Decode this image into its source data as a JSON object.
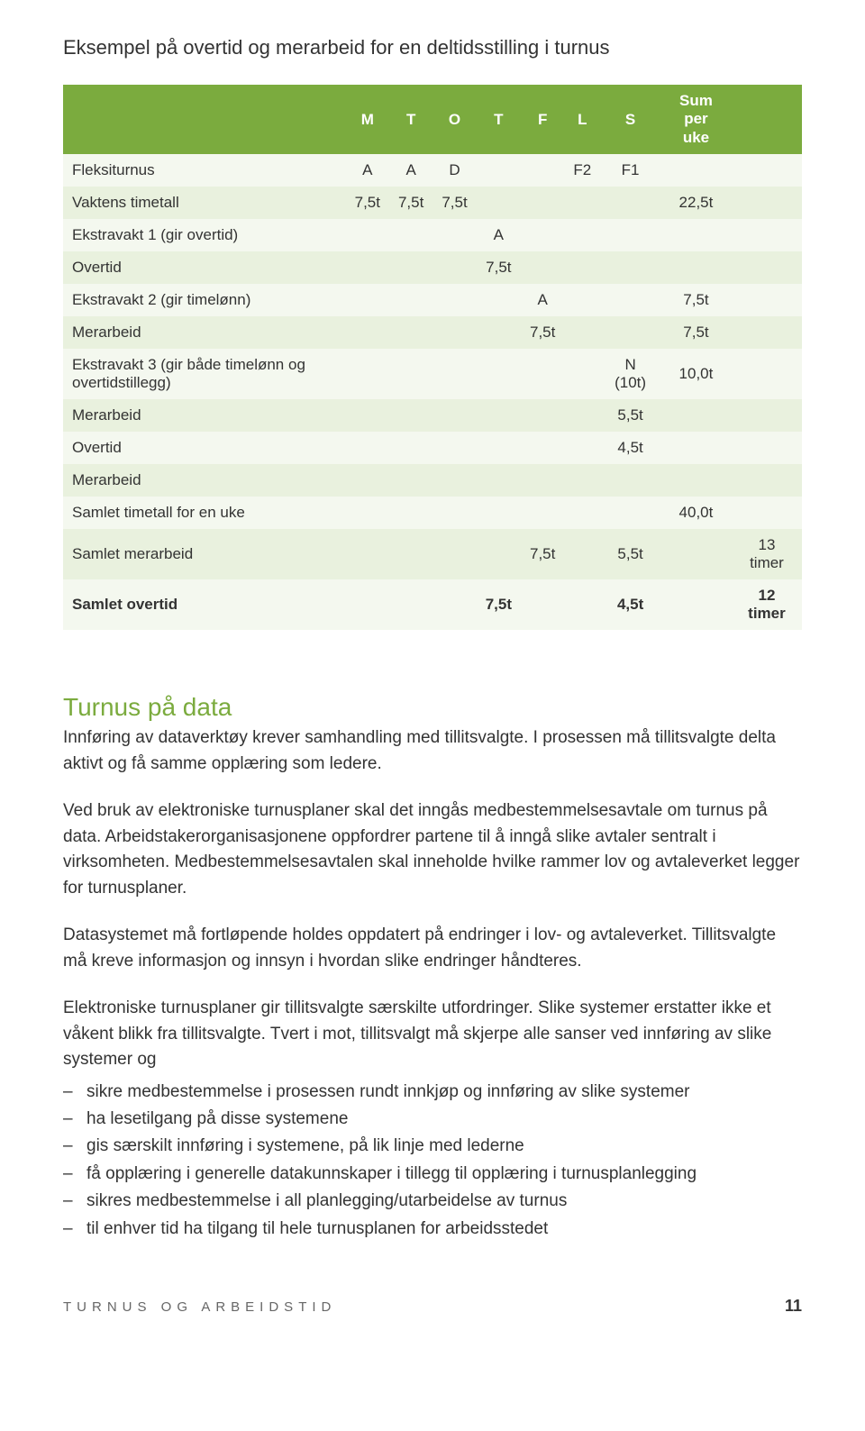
{
  "title": "Eksempel på overtid og merarbeid for en deltidsstilling i turnus",
  "table": {
    "header_bg": "#7bab3e",
    "header_fg": "#ffffff",
    "row_odd_bg": "#f4f8ef",
    "row_even_bg": "#e9f1de",
    "columns": [
      "",
      "M",
      "T",
      "O",
      "T",
      "F",
      "L",
      "S",
      "Sum per uke",
      ""
    ],
    "sum_header_top": "Sum per",
    "sum_header_bot": "uke",
    "rows": [
      {
        "label": "Fleksiturnus",
        "cells": [
          "A",
          "A",
          "D",
          "",
          "",
          "F2",
          "F1",
          "",
          ""
        ]
      },
      {
        "label": "Vaktens timetall",
        "cells": [
          "7,5t",
          "7,5t",
          "7,5t",
          "",
          "",
          "",
          "",
          "22,5t",
          ""
        ]
      },
      {
        "label": "Ekstravakt 1 (gir overtid)",
        "cells": [
          "",
          "",
          "",
          "A",
          "",
          "",
          "",
          "",
          ""
        ]
      },
      {
        "label": "Overtid",
        "cells": [
          "",
          "",
          "",
          "7,5t",
          "",
          "",
          "",
          "",
          ""
        ]
      },
      {
        "label": "Ekstravakt 2 (gir timelønn)",
        "cells": [
          "",
          "",
          "",
          "",
          "A",
          "",
          "",
          "7,5t",
          ""
        ]
      },
      {
        "label": "Merarbeid",
        "cells": [
          "",
          "",
          "",
          "",
          "7,5t",
          "",
          "",
          "7,5t",
          ""
        ]
      },
      {
        "label": "Ekstravakt 3 (gir både timelønn og overtidstillegg)",
        "cells": [
          "",
          "",
          "",
          "",
          "",
          "",
          "N (10t)",
          "10,0t",
          ""
        ]
      },
      {
        "label": "Merarbeid",
        "cells": [
          "",
          "",
          "",
          "",
          "",
          "",
          "5,5t",
          "",
          ""
        ]
      },
      {
        "label": "Overtid",
        "cells": [
          "",
          "",
          "",
          "",
          "",
          "",
          "4,5t",
          "",
          ""
        ]
      },
      {
        "label": "Merarbeid",
        "cells": [
          "",
          "",
          "",
          "",
          "",
          "",
          "",
          "",
          ""
        ]
      },
      {
        "label": "Samlet timetall for en uke",
        "cells": [
          "",
          "",
          "",
          "",
          "",
          "",
          "",
          "40,0t",
          ""
        ]
      },
      {
        "label": "Samlet merarbeid",
        "cells": [
          "",
          "",
          "",
          "",
          "7,5t",
          "",
          "5,5t",
          "",
          "13 timer"
        ]
      },
      {
        "label": "Samlet overtid",
        "cells": [
          "",
          "",
          "",
          "7,5t",
          "",
          "",
          "4,5t",
          "",
          "12 timer"
        ],
        "bold": true
      }
    ]
  },
  "section_heading": "Turnus på data",
  "paragraphs": {
    "p1": "Innføring av dataverktøy krever samhandling med tillitsvalgte. I prosessen må tillitsvalgte delta aktivt og få samme opplæring som ledere.",
    "p2": "Ved bruk av elektroniske turnusplaner skal det inngås medbestemmelsesavtale om turnus på data. Arbeidstakerorganisasjonene oppfordrer partene til å inngå slike avtaler sentralt i virksomheten. Medbestemmelsesavtalen skal inneholde hvilke rammer lov og avtaleverket legger for turnusplaner.",
    "p3": "Datasystemet må fortløpende holdes oppdatert på endringer i lov- og avtaleverket. Tillitsvalgte må kreve informasjon og innsyn i hvordan slike endringer håndteres.",
    "p4": "Elektroniske turnusplaner gir tillitsvalgte særskilte utfordringer. Slike systemer erstatter ikke et våkent blikk fra tillitsvalgte. Tvert i mot, tillitsvalgt må skjerpe alle sanser ved innføring av slike systemer og"
  },
  "bullets": [
    "sikre medbestemmelse i prosessen rundt innkjøp og innføring av slike systemer",
    "ha lesetilgang på disse systemene",
    "gis særskilt innføring i systemene, på lik linje med lederne",
    "få opplæring i generelle datakunnskaper i tillegg til opplæring i turnusplanlegging",
    "sikres medbestemmelse i all planlegging/utarbeidelse av turnus",
    "til enhver tid ha tilgang til hele turnusplanen for arbeidsstedet"
  ],
  "footer": {
    "label": "TURNUS OG ARBEIDSTID",
    "page": "11"
  },
  "colors": {
    "accent": "#7bab3e",
    "text": "#333333",
    "footer_text": "#666666"
  }
}
